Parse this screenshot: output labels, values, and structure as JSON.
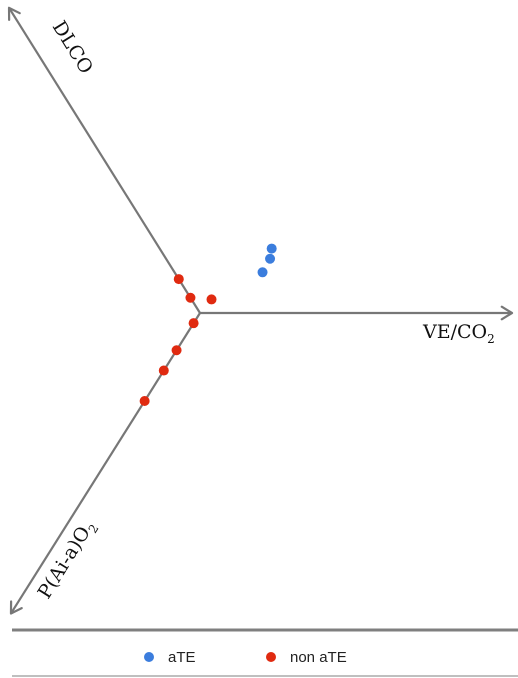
{
  "chart_data": {
    "type": "scatter",
    "axes": [
      {
        "id": "ve",
        "label": "VE/CO",
        "label_subscript": "2"
      },
      {
        "id": "dlco",
        "label": "DLCO",
        "label_subscript": ""
      },
      {
        "id": "paa",
        "label": "P(Ai-a)O",
        "label_subscript": "2"
      }
    ],
    "series": [
      {
        "name": "aTE",
        "color": "#3b7ddd",
        "points": [
          {
            "ve": 2.6,
            "dlco": 1.6
          },
          {
            "ve": 2.8,
            "dlco": 1.9
          },
          {
            "ve": 2.2,
            "dlco": 1.2
          }
        ]
      },
      {
        "name": "non aTE",
        "color": "#e02a10",
        "points": [
          {
            "dlco": 1.0
          },
          {
            "ve": 0.5,
            "dlco": 0.4
          },
          {
            "dlco": 0.45
          },
          {
            "paa": 0.3
          },
          {
            "paa": 1.1
          },
          {
            "paa": 1.7
          },
          {
            "paa": 2.6
          }
        ]
      }
    ],
    "legend": {
      "position": "bottom",
      "items": [
        {
          "label": "aTE",
          "color": "#3b7ddd"
        },
        {
          "label": "non aTE",
          "color": "#e02a10"
        }
      ]
    },
    "grid": false
  }
}
